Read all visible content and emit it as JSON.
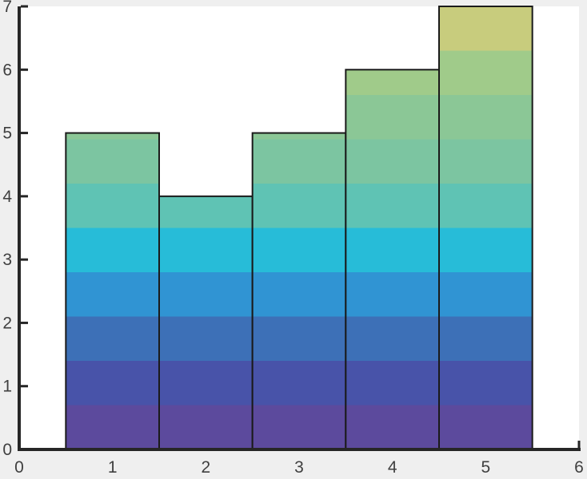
{
  "figure": {
    "background": "#efefef",
    "plot_background": "#ffffff",
    "axis_color": "#262626",
    "tick_label_color": "#3f3f3f",
    "bar_edge_color": "#1a1a1a"
  },
  "chart_data": {
    "type": "bar",
    "x": [
      1,
      2,
      3,
      4,
      5
    ],
    "values": [
      5,
      4,
      5,
      6,
      7
    ],
    "bar_width": 1,
    "xlim": [
      0,
      6
    ],
    "ylim": [
      0,
      7
    ],
    "xticks": [
      0,
      1,
      2,
      3,
      4,
      5,
      6
    ],
    "xtick_labels": [
      "0",
      "1",
      "2",
      "3",
      "4",
      "5",
      "6"
    ],
    "yticks": [
      0,
      1,
      2,
      3,
      4,
      5,
      6,
      7
    ],
    "ytick_labels": [
      "0",
      "1",
      "2",
      "3",
      "4",
      "5",
      "6",
      "7"
    ],
    "grid": false,
    "colormap_bands": {
      "band_height": 0.7,
      "colors": [
        "#5c4a9d",
        "#4853a9",
        "#3d70b7",
        "#3094d3",
        "#27bcd8",
        "#5fc3b4",
        "#7cc5a1",
        "#8bc796",
        "#a0cb8a",
        "#c8cc7d"
      ]
    }
  }
}
